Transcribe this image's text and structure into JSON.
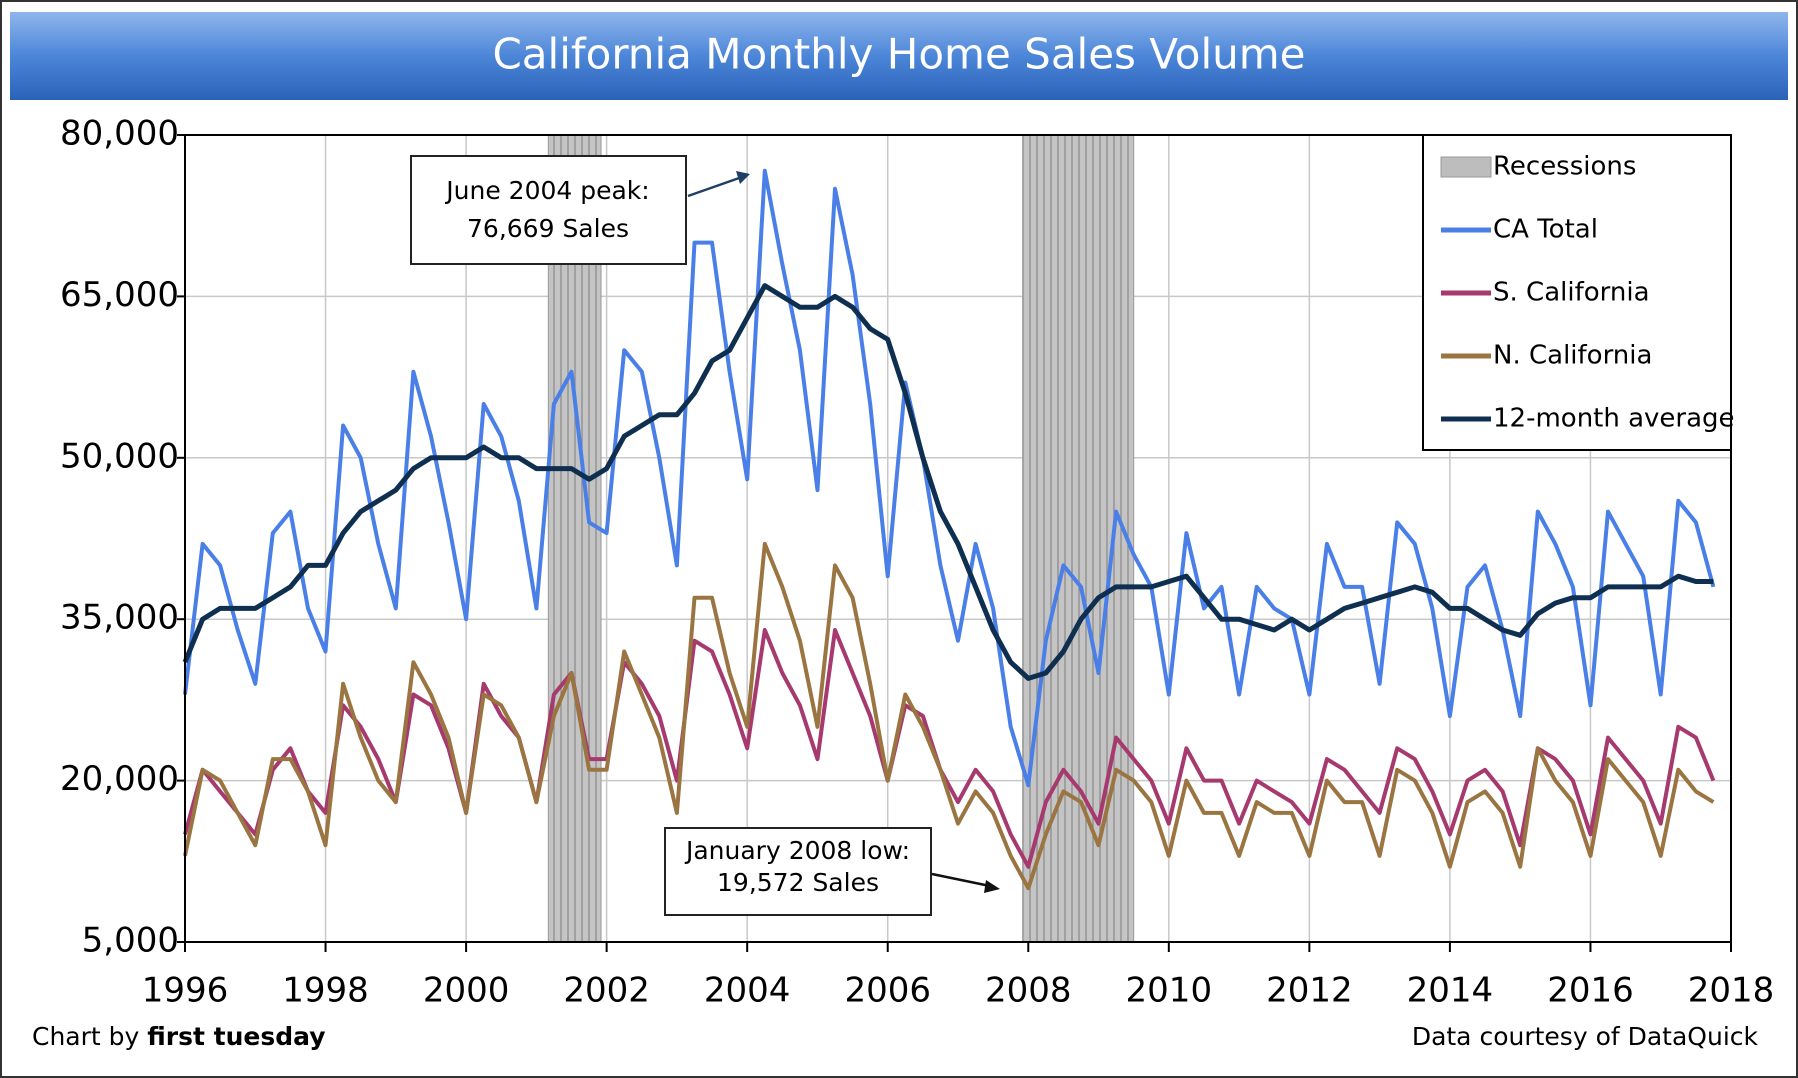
{
  "chart_data": {
    "type": "line",
    "title": "California Monthly Home Sales Volume",
    "xlim": [
      1996,
      2018
    ],
    "xticks": [
      1996,
      1998,
      2000,
      2002,
      2004,
      2006,
      2008,
      2010,
      2012,
      2014,
      2016,
      2018
    ],
    "ylim": [
      5000,
      80000
    ],
    "yticks": [
      {
        "value": 5000,
        "label": "5,000"
      },
      {
        "value": 20000,
        "label": "20,000"
      },
      {
        "value": 35000,
        "label": "35,000"
      },
      {
        "value": 50000,
        "label": "50,000"
      },
      {
        "value": 65000,
        "label": "65,000"
      },
      {
        "value": 80000,
        "label": "80,000"
      }
    ],
    "grid": true,
    "legend": "top-right",
    "recessions": {
      "name": "Recessions",
      "color": "#bdbdbd",
      "periods": [
        [
          2001.17,
          2001.92
        ],
        [
          2007.92,
          2009.5
        ]
      ]
    },
    "x": [
      1996,
      1996.25,
      1996.5,
      1996.75,
      1997,
      1997.25,
      1997.5,
      1997.75,
      1998,
      1998.25,
      1998.5,
      1998.75,
      1999,
      1999.25,
      1999.5,
      1999.75,
      2000,
      2000.25,
      2000.5,
      2000.75,
      2001,
      2001.25,
      2001.5,
      2001.75,
      2002,
      2002.25,
      2002.5,
      2002.75,
      2003,
      2003.25,
      2003.5,
      2003.75,
      2004,
      2004.25,
      2004.5,
      2004.75,
      2005,
      2005.25,
      2005.5,
      2005.75,
      2006,
      2006.25,
      2006.5,
      2006.75,
      2007,
      2007.25,
      2007.5,
      2007.75,
      2008,
      2008.25,
      2008.5,
      2008.75,
      2009,
      2009.25,
      2009.5,
      2009.75,
      2010,
      2010.25,
      2010.5,
      2010.75,
      2011,
      2011.25,
      2011.5,
      2011.75,
      2012,
      2012.25,
      2012.5,
      2012.75,
      2013,
      2013.25,
      2013.5,
      2013.75,
      2014,
      2014.25,
      2014.5,
      2014.75,
      2015,
      2015.25,
      2015.5,
      2015.75,
      2016,
      2016.25,
      2016.5,
      2016.75,
      2017,
      2017.25,
      2017.5,
      2017.75
    ],
    "series": [
      {
        "name": "CA Total",
        "color": "#4a7fe8",
        "values": [
          28000,
          42000,
          40000,
          34000,
          29000,
          43000,
          45000,
          36000,
          32000,
          53000,
          50000,
          42000,
          36000,
          58000,
          52000,
          44000,
          35000,
          55000,
          52000,
          46000,
          36000,
          55000,
          58000,
          44000,
          43000,
          60000,
          58000,
          50000,
          40000,
          70000,
          70000,
          58000,
          48000,
          76669,
          68000,
          60000,
          47000,
          75000,
          67000,
          55000,
          39000,
          57000,
          50000,
          40000,
          33000,
          42000,
          36000,
          25000,
          19572,
          33000,
          40000,
          38000,
          30000,
          45000,
          41000,
          38000,
          28000,
          43000,
          36000,
          38000,
          28000,
          38000,
          36000,
          35000,
          28000,
          42000,
          38000,
          38000,
          29000,
          44000,
          42000,
          36000,
          26000,
          38000,
          40000,
          34000,
          26000,
          45000,
          42000,
          38000,
          27000,
          45000,
          42000,
          39000,
          28000,
          46000,
          44000,
          38000
        ]
      },
      {
        "name": "S. California",
        "color": "#a63a6e",
        "values": [
          15000,
          21000,
          19000,
          17000,
          15000,
          21000,
          23000,
          19000,
          17000,
          27000,
          25000,
          22000,
          18000,
          28000,
          27000,
          23000,
          17000,
          29000,
          26000,
          24000,
          18000,
          28000,
          30000,
          22000,
          22000,
          31000,
          29000,
          26000,
          20000,
          33000,
          32000,
          28000,
          23000,
          34000,
          30000,
          27000,
          22000,
          34000,
          30000,
          26000,
          20000,
          27000,
          26000,
          21000,
          18000,
          21000,
          19000,
          15000,
          12000,
          18000,
          21000,
          19000,
          16000,
          24000,
          22000,
          20000,
          16000,
          23000,
          20000,
          20000,
          16000,
          20000,
          19000,
          18000,
          16000,
          22000,
          21000,
          19000,
          17000,
          23000,
          22000,
          19000,
          15000,
          20000,
          21000,
          19000,
          14000,
          23000,
          22000,
          20000,
          15000,
          24000,
          22000,
          20000,
          16000,
          25000,
          24000,
          20000
        ]
      },
      {
        "name": "N. California",
        "color": "#9a7541",
        "values": [
          13000,
          21000,
          20000,
          17000,
          14000,
          22000,
          22000,
          19000,
          14000,
          29000,
          24000,
          20000,
          18000,
          31000,
          28000,
          24000,
          17000,
          28000,
          27000,
          24000,
          18000,
          26000,
          30000,
          21000,
          21000,
          32000,
          28000,
          24000,
          17000,
          37000,
          37000,
          30000,
          25000,
          42000,
          38000,
          33000,
          25000,
          40000,
          37000,
          29000,
          20000,
          28000,
          25000,
          21000,
          16000,
          19000,
          17000,
          13000,
          10000,
          15000,
          19000,
          18000,
          14000,
          21000,
          20000,
          18000,
          13000,
          20000,
          17000,
          17000,
          13000,
          18000,
          17000,
          17000,
          13000,
          20000,
          18000,
          18000,
          13000,
          21000,
          20000,
          17000,
          12000,
          18000,
          19000,
          17000,
          12000,
          23000,
          20000,
          18000,
          13000,
          22000,
          20000,
          18000,
          13000,
          21000,
          19000,
          18000
        ]
      },
      {
        "name": "12-month average",
        "color": "#0e2f4f",
        "values": [
          31000,
          35000,
          36000,
          36000,
          36000,
          37000,
          38000,
          40000,
          40000,
          43000,
          45000,
          46000,
          47000,
          49000,
          50000,
          50000,
          50000,
          51000,
          50000,
          50000,
          49000,
          49000,
          49000,
          48000,
          49000,
          52000,
          53000,
          54000,
          54000,
          56000,
          59000,
          60000,
          63000,
          66000,
          65000,
          64000,
          64000,
          65000,
          64000,
          62000,
          61000,
          56000,
          50000,
          45000,
          42000,
          38000,
          34000,
          31000,
          29500,
          30000,
          32000,
          35000,
          37000,
          38000,
          38000,
          38000,
          38500,
          39000,
          37000,
          35000,
          35000,
          34500,
          34000,
          35000,
          34000,
          35000,
          36000,
          36500,
          37000,
          37500,
          38000,
          37500,
          36000,
          36000,
          35000,
          34000,
          33500,
          35500,
          36500,
          37000,
          37000,
          38000,
          38000,
          38000,
          38000,
          39000,
          38500,
          38500
        ]
      }
    ],
    "annotations": [
      {
        "lines": [
          "June 2004 peak:",
          "76,669 Sales"
        ]
      },
      {
        "lines": [
          "January 2008 low:",
          "19,572 Sales"
        ]
      }
    ],
    "credit": {
      "prefix": "Chart by",
      "name": "first tuesday"
    },
    "source": "Data courtesy of DataQuick"
  }
}
